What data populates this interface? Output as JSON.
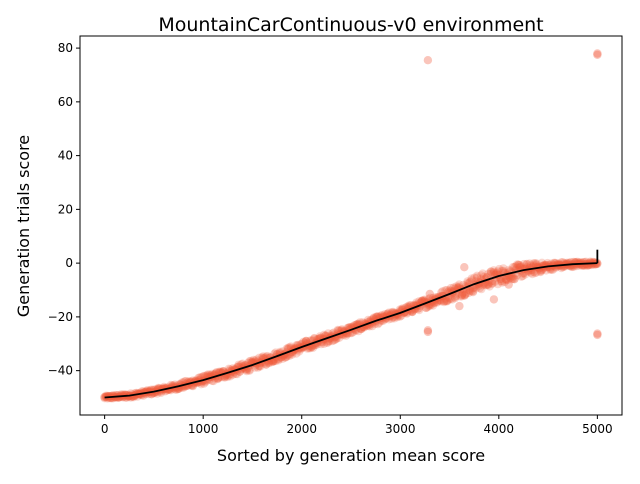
{
  "chart_data": {
    "type": "scatter",
    "title": "MountainCarContinuous-v0 environment",
    "xlabel": "Sorted by generation mean score",
    "ylabel": "Generation trials score",
    "xlim": [
      -250,
      5250
    ],
    "ylim": [
      -56.5,
      84.5
    ],
    "xticks": [
      0,
      1000,
      2000,
      3000,
      4000,
      5000
    ],
    "yticks": [
      -40,
      -20,
      0,
      20,
      40,
      60,
      80
    ],
    "grid": false,
    "legend": "none",
    "colors": {
      "points": "#f05a3c",
      "mean_line": "#000000"
    },
    "mean_line": {
      "x": [
        0,
        250,
        500,
        750,
        1000,
        1250,
        1500,
        1750,
        2000,
        2250,
        2500,
        2750,
        3000,
        3250,
        3500,
        3750,
        4000,
        4250,
        4500,
        4750,
        5000
      ],
      "y": [
        -50,
        -49.3,
        -47.8,
        -45.8,
        -43.5,
        -40.8,
        -37.9,
        -34.6,
        -31.2,
        -28,
        -24.8,
        -21.5,
        -18.5,
        -15,
        -11.5,
        -7.8,
        -4.8,
        -2.6,
        -1.2,
        -0.4,
        0
      ]
    },
    "scatter_band": {
      "x": [
        0,
        250,
        500,
        750,
        1000,
        1250,
        1500,
        1750,
        2000,
        2250,
        2500,
        2750,
        3000,
        3250,
        3500,
        3750,
        4000,
        4250,
        4500,
        4750,
        5000
      ],
      "spread": [
        0.6,
        0.8,
        1.0,
        1.2,
        1.5,
        1.7,
        1.8,
        1.8,
        1.8,
        1.8,
        1.6,
        1.5,
        1.5,
        1.8,
        2.5,
        3.0,
        3.0,
        2.5,
        1.5,
        1.0,
        0.6
      ]
    },
    "outliers": [
      {
        "x": 3280,
        "y": 75.5
      },
      {
        "x": 5000,
        "y": 77.5
      },
      {
        "x": 5000,
        "y": 78
      },
      {
        "x": 3280,
        "y": -25
      },
      {
        "x": 3280,
        "y": -25.6
      },
      {
        "x": 5000,
        "y": -26.2
      },
      {
        "x": 5000,
        "y": -26.7
      },
      {
        "x": 3650,
        "y": -1.5
      },
      {
        "x": 3600,
        "y": -16
      },
      {
        "x": 3950,
        "y": -13.5
      },
      {
        "x": 4100,
        "y": -8
      },
      {
        "x": 3300,
        "y": -11.5
      },
      {
        "x": 4450,
        "y": -2
      }
    ],
    "max_marker": {
      "x": 5000,
      "y0": 0,
      "y1": 5
    }
  }
}
